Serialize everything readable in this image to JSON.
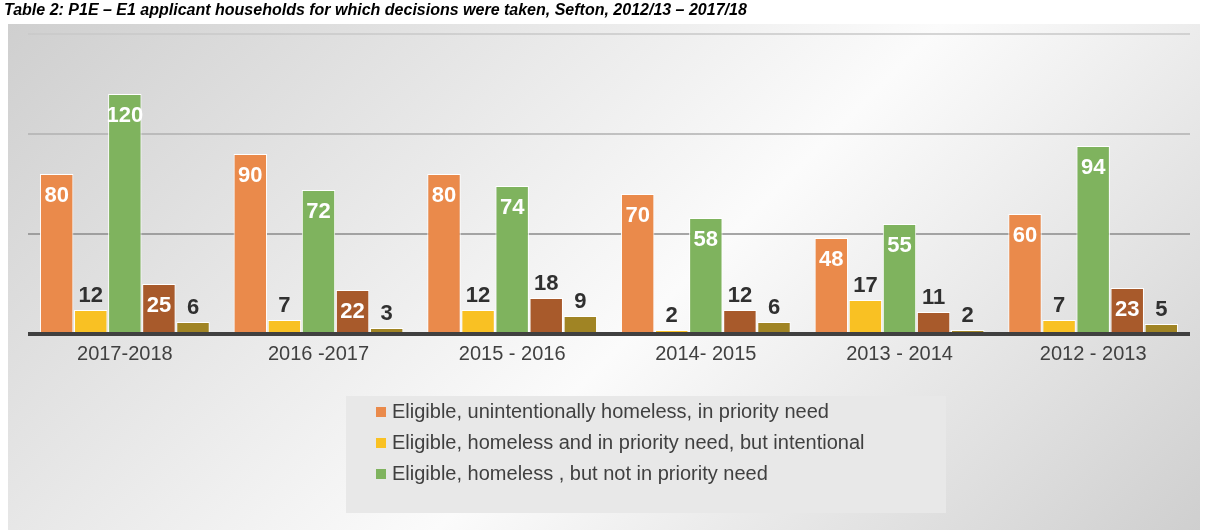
{
  "chart_data": {
    "type": "bar",
    "title": "Table 2: P1E – E1 applicant households for which decisions were taken, Sefton, 2012/13 – 2017/18",
    "categories": [
      "2017-2018",
      "2016 -2017",
      "2015 - 2016",
      "2014- 2015",
      "2013 - 2014",
      "2012 - 2013"
    ],
    "series": [
      {
        "name": "Eligible, unintentionally homeless, in priority need",
        "color": "#ea8a4b",
        "values": [
          80,
          90,
          80,
          70,
          48,
          60
        ]
      },
      {
        "name": "Eligible, homeless and in priority need, but intentional",
        "color": "#f9c123",
        "values": [
          12,
          7,
          12,
          2,
          17,
          7
        ]
      },
      {
        "name": "Eligible, homeless , but not in priority need",
        "color": "#7fb35e",
        "values": [
          120,
          72,
          74,
          58,
          55,
          94
        ]
      },
      {
        "color": "#a85a2b",
        "values": [
          25,
          22,
          18,
          12,
          11,
          23
        ]
      },
      {
        "color": "#a08424",
        "values": [
          6,
          3,
          9,
          6,
          2,
          5
        ]
      }
    ],
    "ylim": [
      0,
      150
    ],
    "ref_lines": [
      {
        "axis": "y",
        "value": 50,
        "color": "#8a8a8a"
      },
      {
        "axis": "y",
        "value": 100,
        "color": "#b0b0b0"
      },
      {
        "axis": "y",
        "value": 150,
        "color": "#c8c8c8"
      }
    ],
    "tick_labels": "x",
    "data_labels": true,
    "legend": "bottom"
  }
}
